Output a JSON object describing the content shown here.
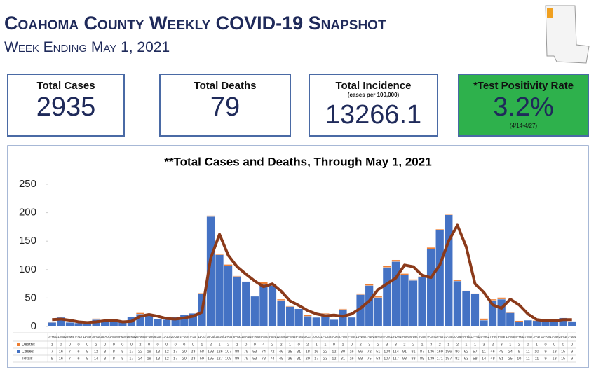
{
  "header": {
    "title": "Coahoma County Weekly COVID-19 Snapshot",
    "subtitle": "Week Ending May 1, 2021"
  },
  "cards": [
    {
      "label": "Total Cases",
      "value": "2935"
    },
    {
      "label": "Total Deaths",
      "value": "79"
    },
    {
      "label": "Total Incidence",
      "note": "(cases per 100,000)",
      "value": "13266.1"
    },
    {
      "label": "*Test Positivity Rate",
      "value": "3.2%",
      "note": "(4/14-4/27)"
    }
  ],
  "chart_data": {
    "type": "bar",
    "stacked": true,
    "title": "**Total Cases and Deaths, Through May 1, 2021",
    "categories": [
      "14-Mar",
      "21-Mar",
      "28-Mar",
      "4-Apr",
      "11-Apr",
      "18-Apr",
      "25-Apr",
      "2-May",
      "9-May",
      "16-May",
      "23-May",
      "30-May",
      "6-Jun",
      "13-Jun",
      "20-Jun",
      "27-Jun",
      "4-Jul",
      "11-Jul",
      "18-Jul",
      "25-Jul",
      "1-Aug",
      "8-Aug",
      "15-Aug",
      "22-Aug",
      "29-Aug",
      "5-Sep",
      "12-Sep",
      "19-Sep",
      "26-Sep",
      "3-Oct",
      "10-Oct",
      "17-Oct",
      "24-Oct",
      "31-Oct",
      "7-Nov",
      "14-Nov",
      "21-Nov",
      "28-Nov",
      "5-Dec",
      "12-Dec",
      "19-Dec",
      "26-Dec",
      "2-Jan",
      "9-Jan",
      "16-Jan",
      "23-Jan",
      "30-Jan",
      "6-Feb",
      "13-Feb",
      "20-Feb",
      "27-Feb",
      "6-Mar",
      "13-Mar",
      "20-Mar",
      "27-Mar",
      "3-Apr",
      "10-Apr",
      "17-Apr",
      "24-Apr",
      "1-May"
    ],
    "series": [
      {
        "name": "Cases",
        "color": "#4472c4",
        "values": [
          7,
          16,
          7,
          6,
          5,
          12,
          8,
          8,
          8,
          17,
          22,
          19,
          13,
          12,
          17,
          20,
          23,
          58,
          193,
          126,
          107,
          88,
          79,
          53,
          74,
          72,
          46,
          35,
          31,
          18,
          16,
          22,
          12,
          30,
          16,
          56,
          72,
          51,
          104,
          114,
          91,
          81,
          87,
          136,
          169,
          196,
          80,
          62,
          57,
          11,
          46,
          48,
          24,
          8,
          11,
          10,
          9,
          13,
          15,
          9
        ]
      },
      {
        "name": "Deaths",
        "color": "#ed7d31",
        "values": [
          1,
          0,
          0,
          0,
          0,
          2,
          0,
          0,
          0,
          0,
          2,
          0,
          0,
          0,
          0,
          0,
          0,
          1,
          2,
          1,
          2,
          1,
          0,
          0,
          4,
          2,
          2,
          1,
          0,
          2,
          1,
          1,
          0,
          1,
          0,
          2,
          3,
          2,
          3,
          3,
          2,
          2,
          1,
          3,
          2,
          1,
          2,
          1,
          1,
          3,
          2,
          3,
          1,
          2,
          0,
          1,
          0,
          0,
          0,
          0
        ]
      }
    ],
    "totals_label": "Totals",
    "totals": [
      8,
      16,
      7,
      6,
      5,
      14,
      8,
      8,
      8,
      17,
      24,
      19,
      13,
      12,
      17,
      20,
      23,
      59,
      195,
      127,
      109,
      89,
      79,
      53,
      78,
      74,
      48,
      36,
      31,
      20,
      17,
      23,
      12,
      31,
      16,
      58,
      75,
      53,
      107,
      117,
      93,
      83,
      88,
      139,
      171,
      197,
      82,
      63,
      58,
      14,
      48,
      51,
      25,
      10,
      11,
      11,
      9,
      13,
      15,
      9
    ],
    "trend": {
      "color": "#8b3a1a",
      "values": [
        12,
        13,
        11,
        8,
        7,
        8,
        10,
        11,
        8,
        9,
        18,
        21,
        18,
        14,
        13,
        15,
        18,
        25,
        120,
        162,
        125,
        105,
        92,
        80,
        70,
        75,
        62,
        45,
        37,
        28,
        22,
        19,
        20,
        18,
        22,
        32,
        45,
        65,
        75,
        85,
        108,
        105,
        90,
        86,
        108,
        150,
        178,
        140,
        75,
        60,
        38,
        32,
        48,
        38,
        22,
        12,
        10,
        10,
        12,
        12
      ]
    },
    "ylim": [
      0,
      250
    ],
    "yticks": [
      0,
      50,
      100,
      150,
      200,
      250
    ],
    "grid": false
  }
}
